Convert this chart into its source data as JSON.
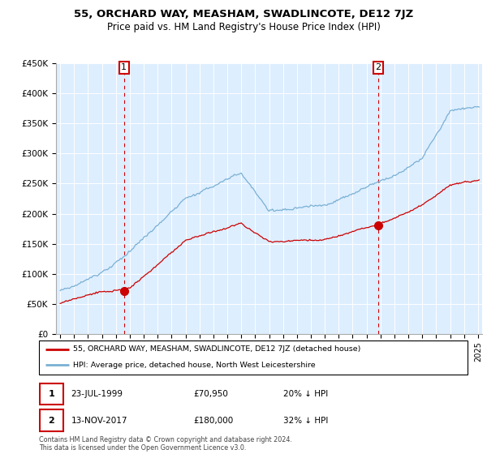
{
  "title": "55, ORCHARD WAY, MEASHAM, SWADLINCOTE, DE12 7JZ",
  "subtitle": "Price paid vs. HM Land Registry's House Price Index (HPI)",
  "ylim": [
    0,
    450000
  ],
  "yticks": [
    0,
    50000,
    100000,
    150000,
    200000,
    250000,
    300000,
    350000,
    400000,
    450000
  ],
  "ytick_labels": [
    "£0",
    "£50K",
    "£100K",
    "£150K",
    "£200K",
    "£250K",
    "£300K",
    "£350K",
    "£400K",
    "£450K"
  ],
  "xlim_start": 1994.7,
  "xlim_end": 2025.3,
  "sale1_x": 1999.556,
  "sale1_y": 70950,
  "sale2_x": 2017.868,
  "sale2_y": 180000,
  "sale1_label": "1",
  "sale2_label": "2",
  "red_line_color": "#cc0000",
  "blue_line_color": "#7ab0d4",
  "plot_bg_color": "#ddeeff",
  "grid_color": "#ffffff",
  "annotation_line_color": "#cc0000",
  "legend_label_red": "55, ORCHARD WAY, MEASHAM, SWADLINCOTE, DE12 7JZ (detached house)",
  "legend_label_blue": "HPI: Average price, detached house, North West Leicestershire",
  "table_row1": [
    "1",
    "23-JUL-1999",
    "£70,950",
    "20% ↓ HPI"
  ],
  "table_row2": [
    "2",
    "13-NOV-2017",
    "£180,000",
    "32% ↓ HPI"
  ],
  "footer": "Contains HM Land Registry data © Crown copyright and database right 2024.\nThis data is licensed under the Open Government Licence v3.0."
}
